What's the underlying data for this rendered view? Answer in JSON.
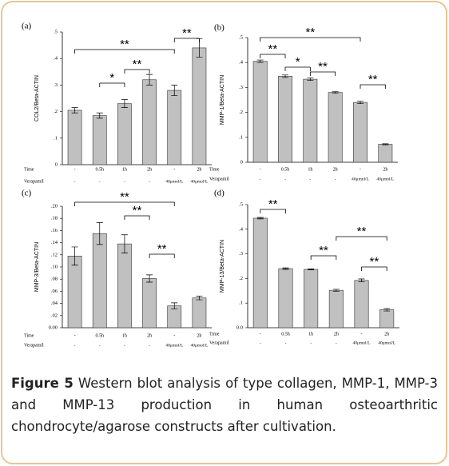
{
  "chart_data": [
    {
      "type": "bar",
      "panel": "(a)",
      "ylabel": "COL2/Beta-ACTIN",
      "color": "#c0c0c0",
      "time_label": "Time",
      "verapamil_label": "Verapamil",
      "categories": [
        "-",
        "0.5h",
        "1h",
        "2h",
        "-",
        "2h"
      ],
      "verapamil": [
        "-",
        "-",
        "-",
        "-",
        "40μmol/L",
        "40μmol/L"
      ],
      "values": [
        0.205,
        0.185,
        0.23,
        0.32,
        0.28,
        0.44
      ],
      "errors": [
        0.01,
        0.01,
        0.015,
        0.02,
        0.02,
        0.035
      ],
      "ylim": [
        0,
        0.5
      ],
      "yticks": [
        0,
        {
          "value": 0.1,
          "label": ".1"
        },
        {
          "value": 0.2,
          "label": ".2"
        },
        {
          "value": 0.3,
          "label": ".3"
        },
        {
          "value": 0.4,
          "label": ".4"
        },
        {
          "value": 0.5,
          "label": ".5"
        }
      ],
      "annotations": [
        "**",
        "*",
        "**",
        "**"
      ]
    },
    {
      "type": "bar",
      "panel": "(b)",
      "ylabel": "MMP-1/Beta-ACTIN",
      "color": "#c0c0c0",
      "time_label": "Time",
      "verapamil_label": "Verapamil",
      "categories": [
        "-",
        "0.5h",
        "1h",
        "2h",
        "-",
        "2h"
      ],
      "verapamil": [
        "-",
        "-",
        "-",
        "-",
        "40μmol/L",
        "40μmol/L"
      ],
      "values": [
        0.405,
        0.345,
        0.333,
        0.28,
        0.24,
        0.072
      ],
      "errors": [
        0.005,
        0.005,
        0.005,
        0.003,
        0.005,
        0.002
      ],
      "ylim": [
        0,
        0.5
      ],
      "yticks": [
        0,
        {
          "value": 0.1,
          "label": ".1"
        },
        {
          "value": 0.2,
          "label": ".2"
        },
        {
          "value": 0.3,
          "label": ".3"
        },
        {
          "value": 0.4,
          "label": ".4"
        },
        {
          "value": 0.5,
          "label": ".5"
        }
      ],
      "annotations": [
        "**",
        "**",
        "*",
        "**",
        "**"
      ]
    },
    {
      "type": "bar",
      "panel": "(c)",
      "ylabel": "MMP-3/Beta-ACTIN",
      "color": "#c0c0c0",
      "time_label": "Time",
      "verapamil_label": "Verapamil",
      "categories": [
        "-",
        "0.5h",
        "1h",
        "2h",
        "-",
        "2h"
      ],
      "verapamil": [
        "-",
        "-",
        "-",
        "-",
        "40μmol/L",
        "40μmol/L"
      ],
      "values": [
        0.118,
        0.155,
        0.138,
        0.081,
        0.036,
        0.049
      ],
      "errors": [
        0.015,
        0.018,
        0.015,
        0.006,
        0.005,
        0.003
      ],
      "ylim": [
        0,
        0.2
      ],
      "yticks": [
        {
          "value": 0,
          "label": "0.00"
        },
        {
          "value": 0.02,
          "label": ".02"
        },
        {
          "value": 0.04,
          "label": ".04"
        },
        {
          "value": 0.06,
          "label": ".06"
        },
        {
          "value": 0.08,
          "label": ".08"
        },
        {
          "value": 0.1,
          "label": ".10"
        },
        {
          "value": 0.12,
          "label": ".12"
        },
        {
          "value": 0.14,
          "label": ".14"
        },
        {
          "value": 0.16,
          "label": ".16"
        },
        {
          "value": 0.18,
          "label": ".18"
        },
        {
          "value": 0.2,
          "label": ".20"
        }
      ],
      "annotations": [
        "**",
        "**",
        "**"
      ]
    },
    {
      "type": "bar",
      "panel": "(d)",
      "ylabel": "MMP-13/Beta-ACTIN",
      "color": "#c0c0c0",
      "time_label": "Time",
      "verapamil_label": "Verapamil",
      "categories": [
        "-",
        "0.5h",
        "1h",
        "2h",
        "-",
        "2h"
      ],
      "verapamil": [
        "-",
        "-",
        "-",
        "-",
        "40μmol/L",
        "40μmol/L"
      ],
      "values": [
        0.445,
        0.24,
        0.237,
        0.152,
        0.192,
        0.073
      ],
      "errors": [
        0.003,
        0.003,
        0.002,
        0.004,
        0.006,
        0.005
      ],
      "ylim": [
        0,
        0.5
      ],
      "yticks": [
        {
          "value": 0,
          "label": "0.0"
        },
        {
          "value": 0.1,
          "label": ".1"
        },
        {
          "value": 0.2,
          "label": ".2"
        },
        {
          "value": 0.3,
          "label": ".3"
        },
        {
          "value": 0.4,
          "label": ".4"
        },
        {
          "value": 0.5,
          "label": ".5"
        }
      ],
      "annotations": [
        "**",
        "**",
        "**",
        "**"
      ]
    }
  ],
  "caption": {
    "label": "Figure 5",
    "text": "Western blot analysis of type collagen, MMP-1, MMP-3 and MMP-13 production in human osteoarthritic chondrocyte/agarose constructs after cultivation."
  }
}
